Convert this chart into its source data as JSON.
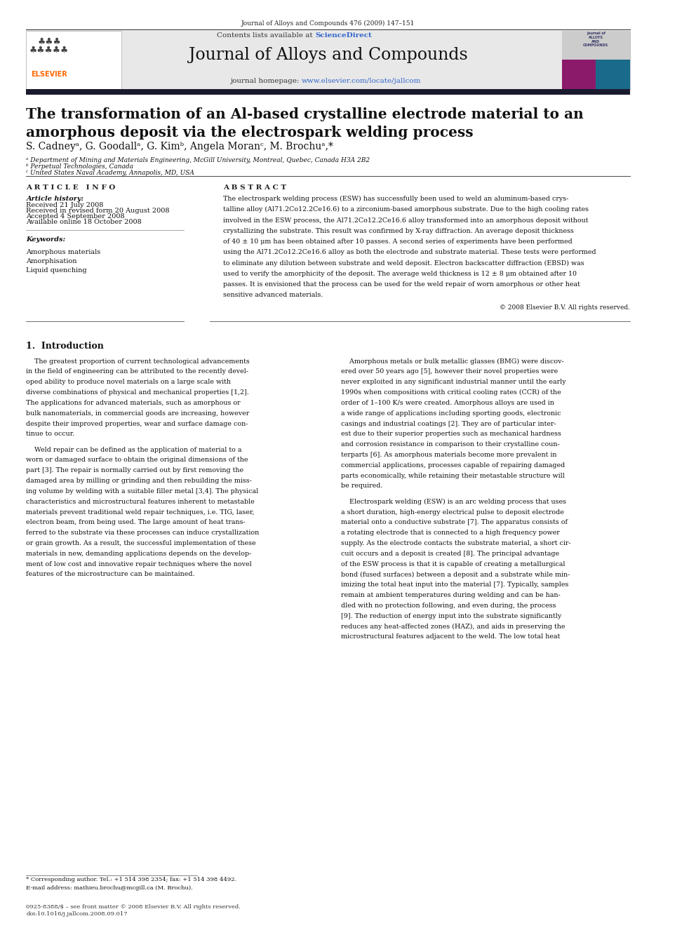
{
  "page_width": 9.92,
  "page_height": 13.23,
  "bg_color": "#ffffff",
  "header_journal_ref": "Journal of Alloys and Compounds 476 (2009) 147–151",
  "header_bg": "#e8e8e8",
  "journal_title": "Journal of Alloys and Compounds",
  "contents_text": "Contents lists available at ",
  "sciencedirect_text": "ScienceDirect",
  "homepage_label": "journal homepage: ",
  "homepage_url": "www.elsevier.com/locate/jallcom",
  "sciencedirect_color": "#3366cc",
  "homepage_url_color": "#3366cc",
  "paper_title_line1": "The transformation of an Al-based crystalline electrode material to an",
  "paper_title_line2": "amorphous deposit via the electrospark welding process",
  "authors": "S. Cadneyᵃ, G. Goodallᵃ, G. Kimᵇ, Angela Moranᶜ, M. Brochuᵃ,*",
  "affil_a": "ᵃ Department of Mining and Materials Engineering, McGill University, Montreal, Quebec, Canada H3A 2B2",
  "affil_b": "ᵇ Perpetual Technologies, Canada",
  "affil_c": "ᶜ United States Naval Academy, Annapolis, MD, USA",
  "article_info_header": "A R T I C L E   I N F O",
  "abstract_header": "A B S T R A C T",
  "article_history_header": "Article history:",
  "received": "Received 21 July 2008",
  "received_revised": "Received in revised form 20 August 2008",
  "accepted": "Accepted 4 September 2008",
  "available": "Available online 18 October 2008",
  "keywords_header": "Keywords:",
  "kw1": "Amorphous materials",
  "kw2": "Amorphisation",
  "kw3": "Liquid quenching",
  "copyright": "© 2008 Elsevier B.V. All rights reserved.",
  "section1_title": "1.  Introduction",
  "footnote_star": "* Corresponding author. Tel.: +1 514 398 2354; fax: +1 514 398 4492.",
  "footnote_email": "E-mail address: mathieu.brochu@mcgill.ca (M. Brochu).",
  "footer_issn": "0925-8388/$ – see front matter © 2008 Elsevier B.V. All rights reserved.",
  "footer_doi": "doi:10.1016/j.jallcom.2008.09.017",
  "elsevier_color": "#ff6600",
  "dark_bar_color": "#1a1a2e",
  "cover_gray": "#cccccc",
  "cover_magenta": "#8b1a6b",
  "cover_teal": "#1a6b8b",
  "abstract_lines": [
    "The electrospark welding process (ESW) has successfully been used to weld an aluminum-based crys-",
    "talline alloy (Al71.2Co12.2Ce16.6) to a zirconium-based amorphous substrate. Due to the high cooling rates",
    "involved in the ESW process, the Al71.2Co12.2Ce16.6 alloy transformed into an amorphous deposit without",
    "crystallizing the substrate. This result was confirmed by X-ray diffraction. An average deposit thickness",
    "of 40 ± 10 μm has been obtained after 10 passes. A second series of experiments have been performed",
    "using the Al71.2Co12.2Ce16.6 alloy as both the electrode and substrate material. These tests were performed",
    "to eliminate any dilution between substrate and weld deposit. Electron backscatter diffraction (EBSD) was",
    "used to verify the amorphicity of the deposit. The average weld thickness is 12 ± 8 μm obtained after 10",
    "passes. It is envisioned that the process can be used for the weld repair of worn amorphous or other heat",
    "sensitive advanced materials."
  ],
  "col1_lines": [
    "    The greatest proportion of current technological advancements",
    "in the field of engineering can be attributed to the recently devel-",
    "oped ability to produce novel materials on a large scale with",
    "diverse combinations of physical and mechanical properties [1,2].",
    "The applications for advanced materials, such as amorphous or",
    "bulk nanomaterials, in commercial goods are increasing, however",
    "despite their improved properties, wear and surface damage con-",
    "tinue to occur.",
    "",
    "    Weld repair can be defined as the application of material to a",
    "worn or damaged surface to obtain the original dimensions of the",
    "part [3]. The repair is normally carried out by first removing the",
    "damaged area by milling or grinding and then rebuilding the miss-",
    "ing volume by welding with a suitable filler metal [3,4]. The physical",
    "characteristics and microstructural features inherent to metastable",
    "materials prevent traditional weld repair techniques, i.e. TIG, laser,",
    "electron beam, from being used. The large amount of heat trans-",
    "ferred to the substrate via these processes can induce crystallization",
    "or grain growth. As a result, the successful implementation of these",
    "materials in new, demanding applications depends on the develop-",
    "ment of low cost and innovative repair techniques where the novel",
    "features of the microstructure can be maintained."
  ],
  "col2_lines": [
    "    Amorphous metals or bulk metallic glasses (BMG) were discov-",
    "ered over 50 years ago [5], however their novel properties were",
    "never exploited in any significant industrial manner until the early",
    "1990s when compositions with critical cooling rates (CCR) of the",
    "order of 1–100 K/s were created. Amorphous alloys are used in",
    "a wide range of applications including sporting goods, electronic",
    "casings and industrial coatings [2]. They are of particular inter-",
    "est due to their superior properties such as mechanical hardness",
    "and corrosion resistance in comparison to their crystalline coun-",
    "terparts [6]. As amorphous materials become more prevalent in",
    "commercial applications, processes capable of repairing damaged",
    "parts economically, while retaining their metastable structure will",
    "be required.",
    "",
    "    Electrospark welding (ESW) is an arc welding process that uses",
    "a short duration, high-energy electrical pulse to deposit electrode",
    "material onto a conductive substrate [7]. The apparatus consists of",
    "a rotating electrode that is connected to a high frequency power",
    "supply. As the electrode contacts the substrate material, a short cir-",
    "cuit occurs and a deposit is created [8]. The principal advantage",
    "of the ESW process is that it is capable of creating a metallurgical",
    "bond (fused surfaces) between a deposit and a substrate while min-",
    "imizing the total heat input into the material [7]. Typically, samples",
    "remain at ambient temperatures during welding and can be han-",
    "dled with no protection following, and even during, the process",
    "[9]. The reduction of energy input into the substrate significantly",
    "reduces any heat-affected zones (HAZ), and aids in preserving the",
    "microstructural features adjacent to the weld. The low total heat"
  ]
}
